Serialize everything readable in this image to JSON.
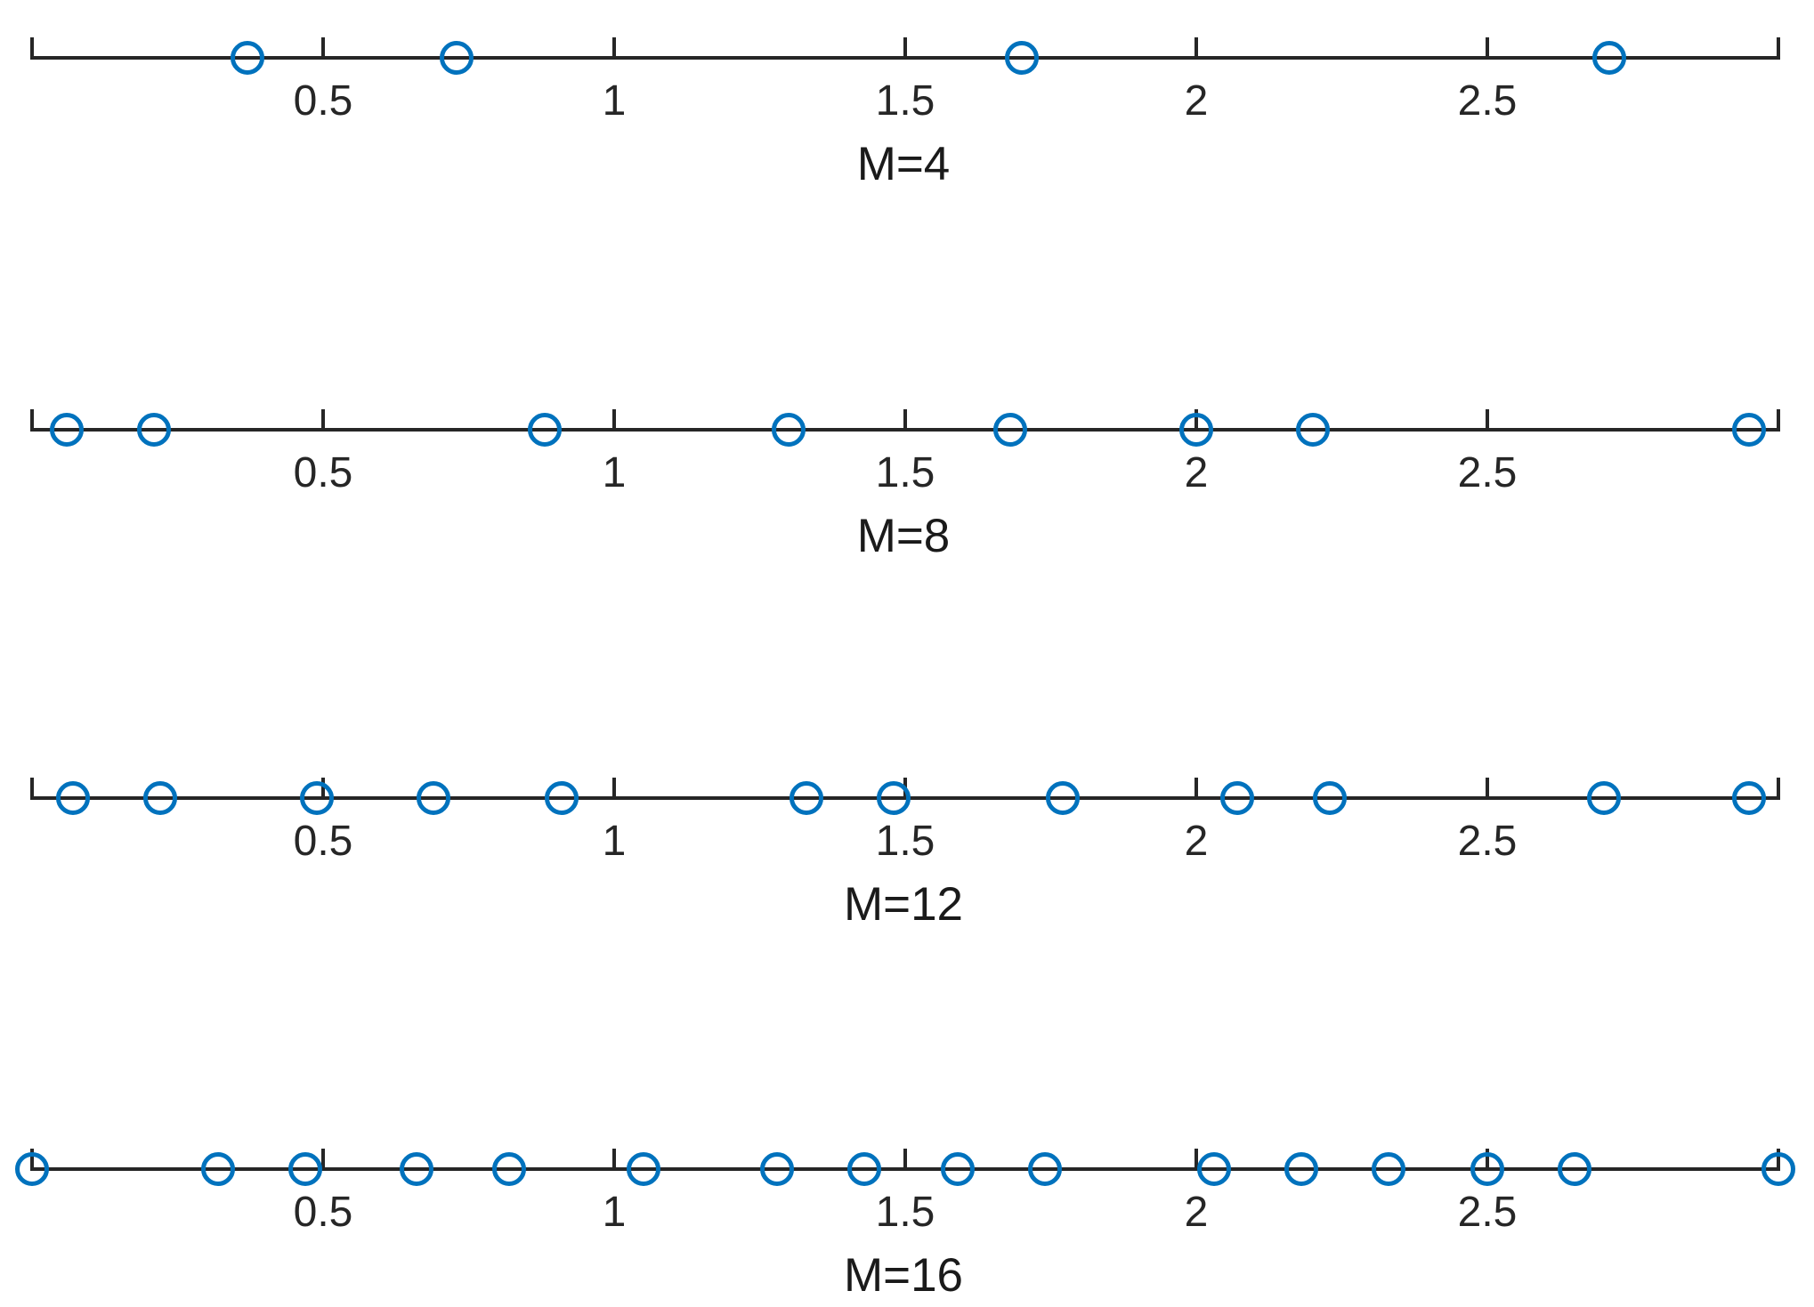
{
  "figure": {
    "background": "#ffffff",
    "axis_color": "#262626",
    "tick_label_color": "#262626",
    "xlabel_color": "#1a1a1a",
    "marker_color": "#0072bd"
  },
  "chart_data": [
    {
      "type": "scatter",
      "xlabel": "M=4",
      "xlim": [
        0,
        3
      ],
      "grid": false,
      "legend": null,
      "ticks": [
        {
          "value": 0,
          "label": ""
        },
        {
          "value": 0.5,
          "label": "0.5"
        },
        {
          "value": 1,
          "label": "1"
        },
        {
          "value": 1.5,
          "label": "1.5"
        },
        {
          "value": 2,
          "label": "2"
        },
        {
          "value": 2.5,
          "label": "2.5"
        },
        {
          "value": 3,
          "label": ""
        }
      ],
      "points_x": [
        0.37,
        0.73,
        1.7,
        2.71
      ]
    },
    {
      "type": "scatter",
      "xlabel": "M=8",
      "xlim": [
        0,
        3
      ],
      "grid": false,
      "legend": null,
      "ticks": [
        {
          "value": 0,
          "label": ""
        },
        {
          "value": 0.5,
          "label": "0.5"
        },
        {
          "value": 1,
          "label": "1"
        },
        {
          "value": 1.5,
          "label": "1.5"
        },
        {
          "value": 2,
          "label": "2"
        },
        {
          "value": 2.5,
          "label": "2.5"
        },
        {
          "value": 3,
          "label": ""
        }
      ],
      "points_x": [
        0.06,
        0.21,
        0.88,
        1.3,
        1.68,
        2.0,
        2.2,
        2.95
      ]
    },
    {
      "type": "scatter",
      "xlabel": "M=12",
      "xlim": [
        0,
        3
      ],
      "grid": false,
      "legend": null,
      "ticks": [
        {
          "value": 0,
          "label": ""
        },
        {
          "value": 0.5,
          "label": "0.5"
        },
        {
          "value": 1,
          "label": "1"
        },
        {
          "value": 1.5,
          "label": "1.5"
        },
        {
          "value": 2,
          "label": "2"
        },
        {
          "value": 2.5,
          "label": "2.5"
        },
        {
          "value": 3,
          "label": ""
        }
      ],
      "points_x": [
        0.07,
        0.22,
        0.49,
        0.69,
        0.91,
        1.33,
        1.48,
        1.77,
        2.07,
        2.23,
        2.7,
        2.95
      ]
    },
    {
      "type": "scatter",
      "xlabel": "M=16",
      "xlim": [
        0,
        3
      ],
      "grid": false,
      "legend": null,
      "ticks": [
        {
          "value": 0,
          "label": ""
        },
        {
          "value": 0.5,
          "label": "0.5"
        },
        {
          "value": 1,
          "label": "1"
        },
        {
          "value": 1.5,
          "label": "1.5"
        },
        {
          "value": 2,
          "label": "2"
        },
        {
          "value": 2.5,
          "label": "2.5"
        },
        {
          "value": 3,
          "label": ""
        }
      ],
      "points_x": [
        0.0,
        0.32,
        0.47,
        0.66,
        0.82,
        1.05,
        1.28,
        1.43,
        1.59,
        1.74,
        2.03,
        2.18,
        2.33,
        2.5,
        2.65,
        3.0
      ]
    }
  ]
}
